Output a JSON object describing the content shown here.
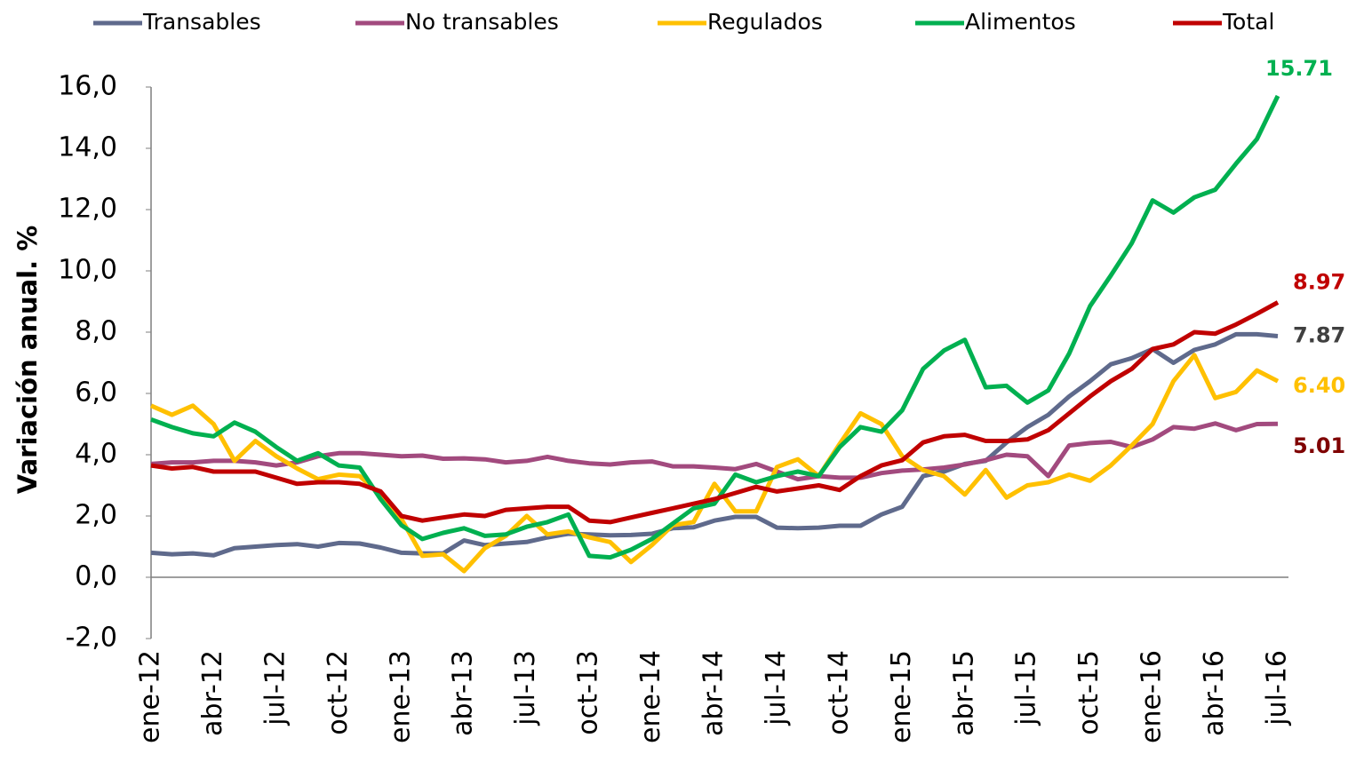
{
  "chart_data": {
    "type": "line",
    "y_label": "Variación anual. %",
    "categories": [
      "ene-12",
      null,
      null,
      "abr-12",
      null,
      null,
      "jul-12",
      null,
      null,
      "oct-12",
      null,
      null,
      "ene-13",
      null,
      null,
      "abr-13",
      null,
      null,
      "jul-13",
      null,
      null,
      "oct-13",
      null,
      null,
      "ene-14",
      null,
      null,
      "abr-14",
      null,
      null,
      "jul-14",
      null,
      null,
      "oct-14",
      null,
      null,
      "ene-15",
      null,
      null,
      "abr-15",
      null,
      null,
      "jul-15",
      null,
      null,
      "oct-15",
      null,
      null,
      "ene-16",
      null,
      null,
      "abr-16",
      null,
      null,
      "jul-16"
    ],
    "ylim": [
      -2,
      16
    ],
    "yticks": [
      {
        "value": -2,
        "label": "-2,0"
      },
      {
        "value": 0,
        "label": "0,0"
      },
      {
        "value": 2,
        "label": "2,0"
      },
      {
        "value": 4,
        "label": "4,0"
      },
      {
        "value": 6,
        "label": "6,0"
      },
      {
        "value": 8,
        "label": "8,0"
      },
      {
        "value": 10,
        "label": "10,0"
      },
      {
        "value": 12,
        "label": "12,0"
      },
      {
        "value": 14,
        "label": "14,0"
      },
      {
        "value": 16,
        "label": "16,0"
      }
    ],
    "grid": false,
    "legend": "top",
    "series": [
      {
        "name": "Transables",
        "color": "#5f6a8c",
        "label_color": "#404040",
        "values": [
          0.8,
          0.75,
          0.78,
          0.72,
          0.95,
          1.0,
          1.05,
          1.08,
          1.0,
          1.12,
          1.1,
          0.97,
          0.8,
          0.78,
          0.78,
          1.2,
          1.05,
          1.1,
          1.15,
          1.3,
          1.42,
          1.4,
          1.37,
          1.38,
          1.42,
          1.6,
          1.63,
          1.85,
          1.97,
          1.97,
          1.62,
          1.6,
          1.62,
          1.68,
          1.68,
          2.05,
          2.3,
          3.3,
          3.45,
          3.7,
          3.8,
          4.4,
          4.9,
          5.3,
          5.9,
          6.4,
          6.95,
          7.15,
          7.45,
          7.0,
          7.42,
          7.6,
          7.93,
          7.93,
          7.87
        ]
      },
      {
        "name": "No transables",
        "color": "#a24a7e",
        "label_color": "#7f0000",
        "values": [
          3.7,
          3.75,
          3.75,
          3.8,
          3.8,
          3.75,
          3.65,
          3.75,
          3.95,
          4.05,
          4.05,
          4.0,
          3.95,
          3.97,
          3.87,
          3.88,
          3.85,
          3.75,
          3.8,
          3.93,
          3.8,
          3.72,
          3.68,
          3.75,
          3.78,
          3.62,
          3.62,
          3.58,
          3.53,
          3.7,
          3.45,
          3.2,
          3.3,
          3.25,
          3.25,
          3.4,
          3.48,
          3.52,
          3.58,
          3.68,
          3.82,
          4.0,
          3.95,
          3.3,
          4.3,
          4.38,
          4.42,
          4.25,
          4.5,
          4.9,
          4.85,
          5.02,
          4.8,
          5.0,
          5.01
        ]
      },
      {
        "name": "Regulados",
        "color": "#ffc000",
        "label_color": "#ffc000",
        "values": [
          5.6,
          5.3,
          5.6,
          5.0,
          3.8,
          4.45,
          3.95,
          3.55,
          3.2,
          3.35,
          3.3,
          2.7,
          1.9,
          0.7,
          0.75,
          0.2,
          0.95,
          1.35,
          2.0,
          1.4,
          1.5,
          1.3,
          1.15,
          0.5,
          1.05,
          1.7,
          1.8,
          3.05,
          2.15,
          2.15,
          3.6,
          3.85,
          3.3,
          4.35,
          5.35,
          5.0,
          3.95,
          3.5,
          3.3,
          2.7,
          3.5,
          2.6,
          3.0,
          3.1,
          3.35,
          3.15,
          3.65,
          4.3,
          5.0,
          6.4,
          7.25,
          5.85,
          6.05,
          6.75,
          6.4
        ],
        "value_labels": [
          null,
          null,
          null,
          null,
          null,
          null,
          null,
          null,
          null,
          null,
          null,
          null,
          null,
          null,
          null,
          null,
          null,
          null,
          null,
          null,
          null,
          null,
          null,
          null,
          null,
          null,
          null,
          null,
          null,
          null,
          null,
          null,
          null,
          null,
          null,
          null,
          null,
          null,
          null,
          null,
          null,
          null,
          null,
          null,
          null,
          null,
          null,
          null,
          null,
          null,
          null,
          null,
          null,
          null,
          "6.40"
        ]
      },
      {
        "name": "Alimentos",
        "color": "#00b050",
        "label_color": "#00b050",
        "values": [
          5.15,
          4.9,
          4.7,
          4.6,
          5.05,
          4.75,
          4.25,
          3.8,
          4.05,
          3.65,
          3.58,
          2.55,
          1.7,
          1.25,
          1.45,
          1.6,
          1.35,
          1.4,
          1.65,
          1.8,
          2.05,
          0.7,
          0.65,
          0.9,
          1.25,
          1.75,
          2.25,
          2.4,
          3.35,
          3.1,
          3.3,
          3.45,
          3.3,
          4.25,
          4.9,
          4.75,
          5.45,
          6.8,
          7.4,
          7.75,
          6.2,
          6.25,
          5.7,
          6.1,
          7.3,
          8.85,
          9.85,
          10.9,
          12.3,
          11.9,
          12.4,
          12.65,
          13.5,
          14.3,
          15.71
        ]
      },
      {
        "name": "Total",
        "color": "#c00000",
        "label_color": "#c00000",
        "values": [
          3.65,
          3.55,
          3.6,
          3.45,
          3.45,
          3.45,
          3.25,
          3.05,
          3.1,
          3.1,
          3.05,
          2.8,
          2.0,
          1.85,
          1.95,
          2.05,
          2.0,
          2.2,
          2.25,
          2.3,
          2.3,
          1.85,
          1.8,
          1.95,
          2.1,
          2.25,
          2.4,
          2.55,
          2.75,
          2.95,
          2.8,
          2.9,
          3.0,
          2.85,
          3.3,
          3.65,
          3.82,
          4.4,
          4.6,
          4.65,
          4.45,
          4.45,
          4.5,
          4.8,
          5.35,
          5.9,
          6.4,
          6.8,
          7.45,
          7.6,
          8.0,
          7.95,
          8.25,
          8.6,
          8.97
        ]
      }
    ]
  }
}
